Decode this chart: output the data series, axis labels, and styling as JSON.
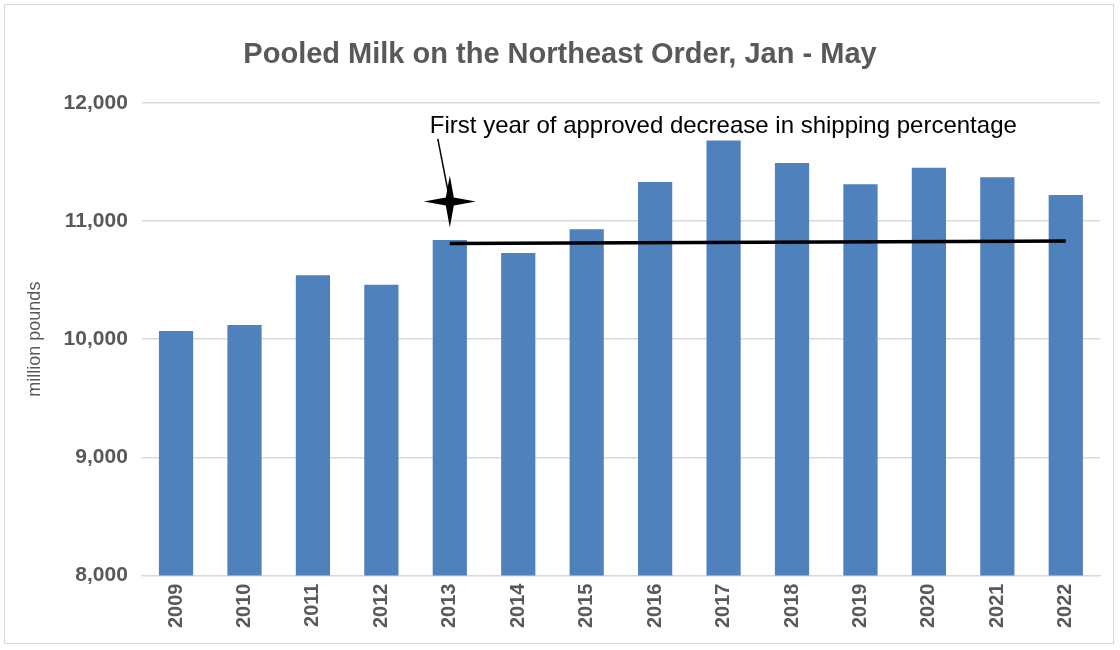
{
  "chart_data": {
    "type": "bar",
    "title": "Pooled Milk on the Northeast Order, Jan - May",
    "ylabel": "million pounds",
    "categories": [
      "2009",
      "2010",
      "2011",
      "2012",
      "2013",
      "2014",
      "2015",
      "2016",
      "2017",
      "2018",
      "2019",
      "2020",
      "2021",
      "2022"
    ],
    "series": [
      {
        "color": "#4f81bd",
        "values": [
          10070,
          10120,
          10540,
          10460,
          10840,
          10730,
          10930,
          11330,
          11680,
          11490,
          11310,
          11450,
          11370,
          11220
        ]
      },
      {
        "type": "line",
        "color": "#000000",
        "values": [
          null,
          null,
          null,
          null,
          10810,
          null,
          null,
          null,
          null,
          null,
          null,
          null,
          null,
          10830
        ]
      }
    ],
    "annotations": [
      "First year of approved decrease in shipping percentage"
    ],
    "ylim": [
      8000,
      12000
    ],
    "yticks": [
      {
        "value": 8000,
        "label": "8,000"
      },
      {
        "value": 9000,
        "label": "9,000"
      },
      {
        "value": 10000,
        "label": "10,000"
      },
      {
        "value": 11000,
        "label": "11,000"
      },
      {
        "value": 12000,
        "label": "12,000"
      }
    ],
    "grid": "y",
    "legend": false,
    "marker": "none"
  }
}
